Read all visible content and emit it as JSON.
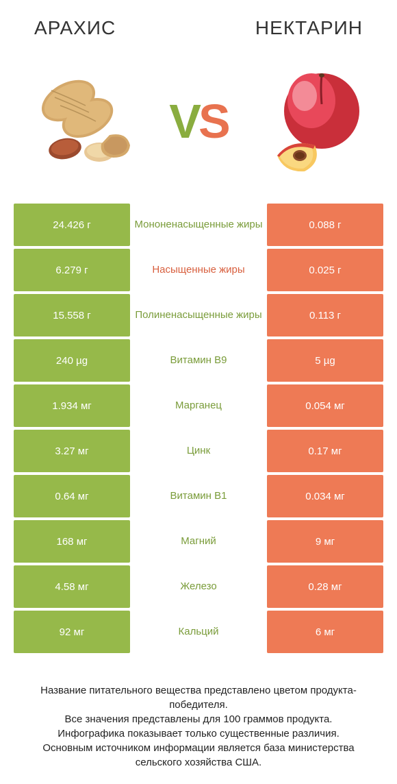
{
  "colors": {
    "left": "#96b94a",
    "right": "#ee7a55",
    "left_text": "#7a9c3a",
    "right_text": "#d85f3e"
  },
  "header": {
    "left_title": "АРАХИС",
    "right_title": "НЕКТАРИН"
  },
  "vs": {
    "v": "V",
    "s": "S"
  },
  "rows": [
    {
      "left": "24.426 г",
      "mid": "Мононенасыщенные жиры",
      "right": "0.088 г",
      "winner": "left"
    },
    {
      "left": "6.279 г",
      "mid": "Насыщенные жиры",
      "right": "0.025 г",
      "winner": "right"
    },
    {
      "left": "15.558 г",
      "mid": "Полиненасыщенные жиры",
      "right": "0.113 г",
      "winner": "left"
    },
    {
      "left": "240 µg",
      "mid": "Витамин B9",
      "right": "5 µg",
      "winner": "left"
    },
    {
      "left": "1.934 мг",
      "mid": "Марганец",
      "right": "0.054 мг",
      "winner": "left"
    },
    {
      "left": "3.27 мг",
      "mid": "Цинк",
      "right": "0.17 мг",
      "winner": "left"
    },
    {
      "left": "0.64 мг",
      "mid": "Витамин B1",
      "right": "0.034 мг",
      "winner": "left"
    },
    {
      "left": "168 мг",
      "mid": "Магний",
      "right": "9 мг",
      "winner": "left"
    },
    {
      "left": "4.58 мг",
      "mid": "Железо",
      "right": "0.28 мг",
      "winner": "left"
    },
    {
      "left": "92 мг",
      "mid": "Кальций",
      "right": "6 мг",
      "winner": "left"
    }
  ],
  "footer": {
    "line1": "Название питательного вещества представлено цветом продукта-победителя.",
    "line2": "Все значения представлены для 100 граммов продукта.",
    "line3": "Инфографика показывает только существенные различия.",
    "line4": "Основным источником информации является база министерства сельского хозяйства США."
  }
}
